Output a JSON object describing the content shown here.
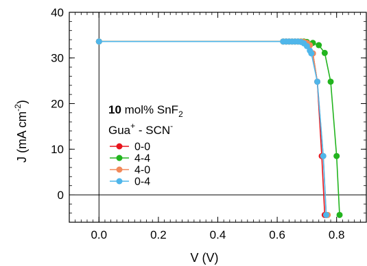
{
  "chart_data": {
    "type": "line",
    "xlabel": "V (V)",
    "ylabel": "J (mA cm-2)",
    "ylabel_parts": {
      "base": "J (mA cm",
      "sup": "-2",
      "close": ")"
    },
    "xlim": [
      -0.1,
      0.9
    ],
    "ylim": [
      -6,
      40
    ],
    "x_ticks": [
      0.0,
      0.2,
      0.4,
      0.6,
      0.8
    ],
    "x_tick_labels": [
      "0.0",
      "0.2",
      "0.4",
      "0.6",
      "0.8"
    ],
    "y_ticks": [
      0,
      10,
      20,
      30,
      40
    ],
    "y_tick_labels": [
      "0",
      "10",
      "20",
      "30",
      "40"
    ],
    "grid": false,
    "reference_lines": {
      "x": 0,
      "y": 0
    },
    "annotation": {
      "line1_bold": "10",
      "line1_rest": " mol% SnF",
      "line1_sub": "2",
      "line2_a": "Gua",
      "line2_sup_a": "+",
      "line2_b": " - SCN",
      "line2_sup_b": "-"
    },
    "legend_position": "left-middle",
    "series": [
      {
        "name": "0-0",
        "color": "#e8141c",
        "x": [
          0.0,
          0.62,
          0.63,
          0.64,
          0.65,
          0.66,
          0.67,
          0.68,
          0.69,
          0.7,
          0.71,
          0.72,
          0.735,
          0.75,
          0.76,
          0.765
        ],
        "y": [
          33.6,
          33.6,
          33.6,
          33.6,
          33.6,
          33.6,
          33.6,
          33.6,
          33.5,
          33.3,
          32.8,
          31.0,
          24.8,
          8.5,
          -4.4,
          -4.4
        ]
      },
      {
        "name": "4-4",
        "color": "#22b41e",
        "x": [
          0.0,
          0.62,
          0.63,
          0.64,
          0.65,
          0.66,
          0.67,
          0.68,
          0.69,
          0.7,
          0.72,
          0.74,
          0.76,
          0.78,
          0.8,
          0.81
        ],
        "y": [
          33.6,
          33.6,
          33.6,
          33.6,
          33.6,
          33.6,
          33.6,
          33.6,
          33.6,
          33.5,
          33.3,
          32.8,
          31.1,
          24.8,
          8.5,
          -4.4
        ]
      },
      {
        "name": "4-0",
        "color": "#f2895a",
        "x": [
          0.0,
          0.62,
          0.63,
          0.64,
          0.65,
          0.66,
          0.67,
          0.68,
          0.69,
          0.7,
          0.71,
          0.72,
          0.735,
          0.755,
          0.765,
          0.77
        ],
        "y": [
          33.6,
          33.6,
          33.6,
          33.6,
          33.6,
          33.6,
          33.6,
          33.6,
          33.5,
          33.3,
          32.8,
          31.0,
          24.8,
          8.5,
          -4.4,
          -4.4
        ]
      },
      {
        "name": "0-4",
        "color": "#4fb6ea",
        "x": [
          0.0,
          0.62,
          0.63,
          0.64,
          0.65,
          0.66,
          0.67,
          0.68,
          0.69,
          0.7,
          0.71,
          0.715,
          0.735,
          0.755,
          0.765
        ],
        "y": [
          33.6,
          33.6,
          33.6,
          33.6,
          33.6,
          33.6,
          33.6,
          33.5,
          33.2,
          32.6,
          31.6,
          31.0,
          24.8,
          8.5,
          -4.4
        ]
      }
    ]
  }
}
